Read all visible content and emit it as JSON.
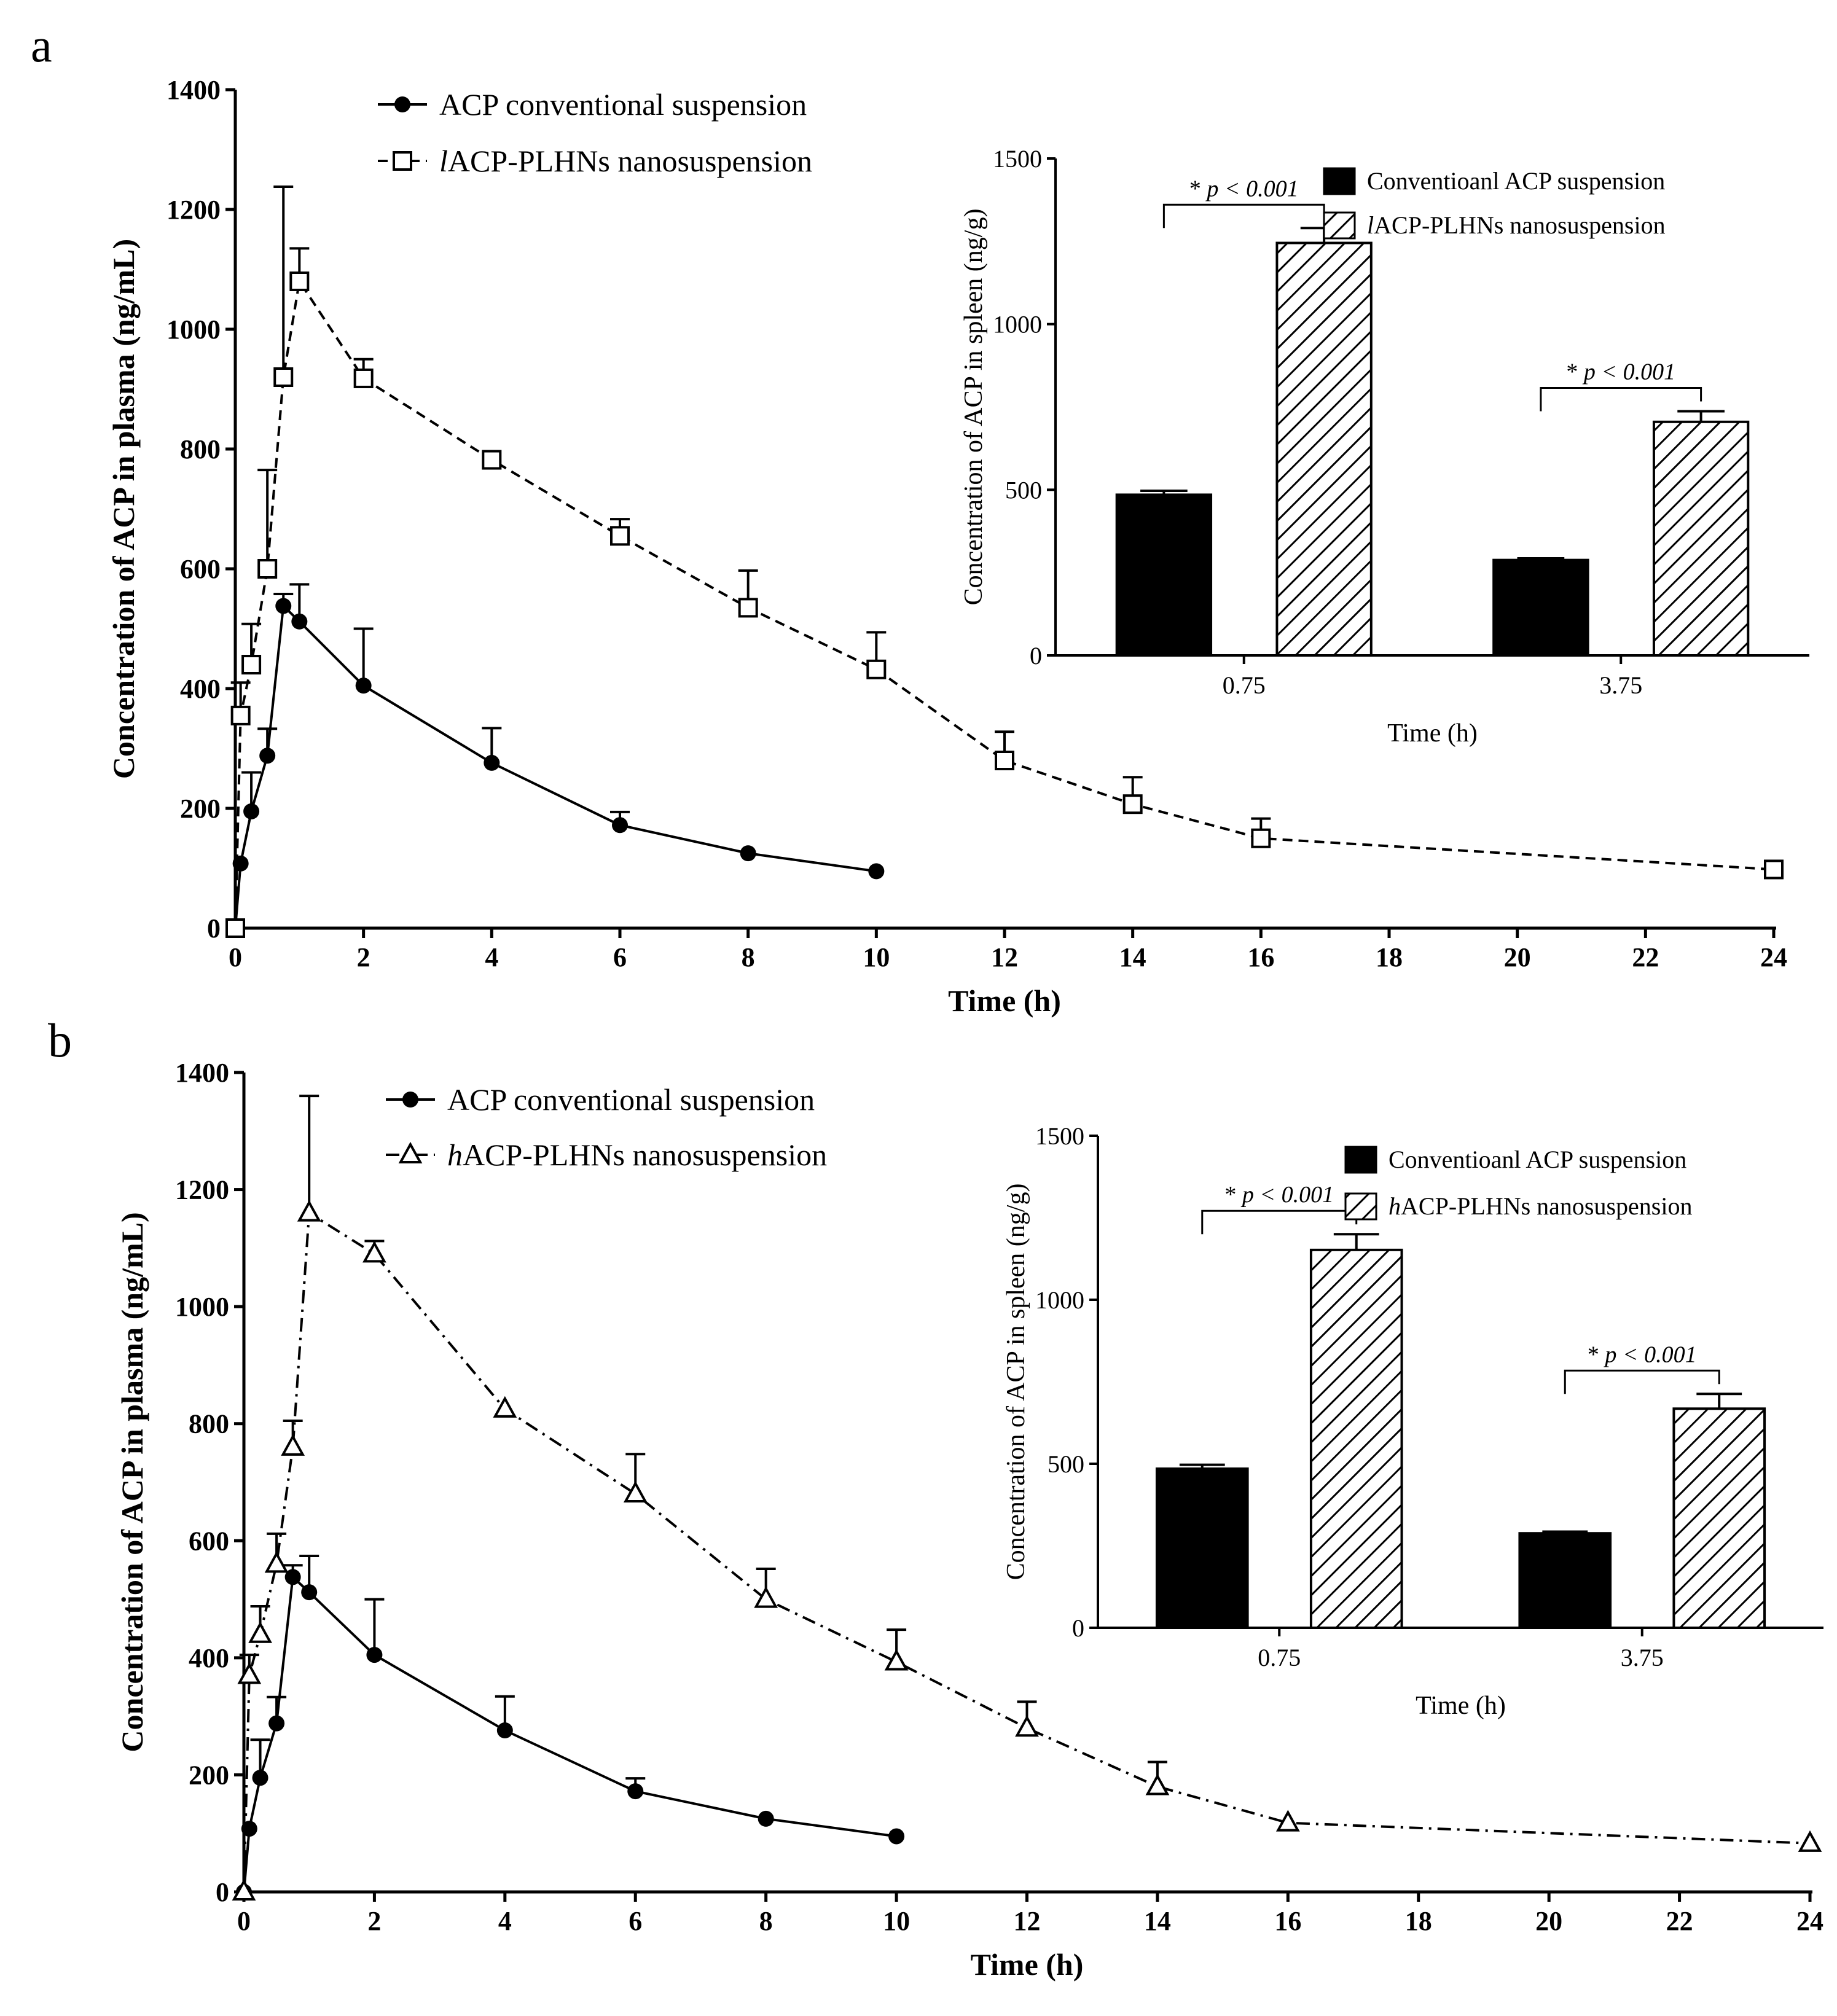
{
  "chart_data": [
    {
      "panel": "a",
      "type": "line",
      "xlabel": "Time (h)",
      "ylabel": "Concentration of ACP in plasma (ng/mL)",
      "xlim": [
        0,
        24
      ],
      "ylim": [
        0,
        1400
      ],
      "xticks": [
        0,
        2,
        4,
        6,
        8,
        10,
        12,
        14,
        16,
        18,
        20,
        22,
        24
      ],
      "yticks": [
        0,
        200,
        400,
        600,
        800,
        1000,
        1200,
        1400
      ],
      "legend_position": "top-left",
      "series": [
        {
          "name": "ACP conventional suspension",
          "marker": "filled-circle",
          "line": "solid",
          "x": [
            0,
            0.083,
            0.25,
            0.5,
            0.75,
            1,
            2,
            4,
            6,
            8,
            10
          ],
          "y": [
            0,
            108,
            195,
            288,
            538,
            512,
            405,
            276,
            172,
            125,
            95
          ],
          "err": [
            0,
            0,
            65,
            45,
            20,
            62,
            95,
            58,
            22,
            0,
            0
          ]
        },
        {
          "name": "lACP-PLHNs nanosuspension",
          "name_prefix_italic": "l",
          "name_rest": "ACP-PLHNs nanosuspension",
          "marker": "open-square",
          "line": "dashed",
          "x": [
            0,
            0.083,
            0.25,
            0.5,
            0.75,
            1,
            2,
            4,
            6,
            8,
            10,
            12,
            14,
            16,
            24
          ],
          "y": [
            0,
            355,
            440,
            600,
            920,
            1080,
            918,
            782,
            655,
            535,
            432,
            280,
            207,
            150,
            98
          ],
          "err": [
            0,
            55,
            68,
            165,
            318,
            55,
            32,
            0,
            28,
            62,
            62,
            48,
            45,
            33,
            0
          ]
        }
      ],
      "inset": {
        "type": "bar",
        "xlabel": "Time (h)",
        "ylabel": "Concentration of ACP in spleen (ng/g)",
        "ylim": [
          0,
          1500
        ],
        "yticks": [
          0,
          500,
          1000,
          1500
        ],
        "categories": [
          "0.75",
          "3.75"
        ],
        "series": [
          {
            "name": "Conventioanl ACP suspension",
            "fill": "solid-black",
            "values": [
              485,
              288
            ],
            "err": [
              12,
              5
            ]
          },
          {
            "name": "lACP-PLHNs nanosuspension",
            "name_prefix_italic": "l",
            "name_rest": "ACP-PLHNs nanosuspension",
            "fill": "diagonal-hatch",
            "values": [
              1245,
              705
            ],
            "err": [
              45,
              32
            ]
          }
        ],
        "annotations": [
          {
            "category": "0.75",
            "star": "*",
            "text": "p < 0.001"
          },
          {
            "category": "3.75",
            "star": "*",
            "text": "p < 0.001"
          }
        ]
      }
    },
    {
      "panel": "b",
      "type": "line",
      "xlabel": "Time (h)",
      "ylabel": "Concentration of ACP in plasma (ng/mL)",
      "xlim": [
        0,
        24
      ],
      "ylim": [
        0,
        1400
      ],
      "xticks": [
        0,
        2,
        4,
        6,
        8,
        10,
        12,
        14,
        16,
        18,
        20,
        22,
        24
      ],
      "yticks": [
        0,
        200,
        400,
        600,
        800,
        1000,
        1200,
        1400
      ],
      "legend_position": "top-left",
      "series": [
        {
          "name": "ACP conventional suspension",
          "marker": "filled-circle",
          "line": "solid",
          "x": [
            0,
            0.083,
            0.25,
            0.5,
            0.75,
            1,
            2,
            4,
            6,
            8,
            10
          ],
          "y": [
            0,
            108,
            195,
            288,
            538,
            512,
            405,
            276,
            172,
            125,
            95
          ],
          "err": [
            0,
            0,
            65,
            45,
            20,
            62,
            95,
            58,
            22,
            0,
            0
          ]
        },
        {
          "name": "hACP-PLHNs nanosuspension",
          "name_prefix_italic": "h",
          "name_rest": "ACP-PLHNs nanosuspension",
          "marker": "open-triangle",
          "line": "dash-dot",
          "x": [
            0,
            0.083,
            0.25,
            0.5,
            0.75,
            1,
            2,
            4,
            6,
            8,
            10,
            12,
            14,
            16,
            24
          ],
          "y": [
            0,
            370,
            440,
            560,
            760,
            1160,
            1090,
            825,
            680,
            500,
            393,
            280,
            180,
            118,
            83
          ],
          "err": [
            0,
            35,
            48,
            52,
            45,
            200,
            22,
            0,
            68,
            52,
            55,
            45,
            42,
            0,
            0
          ]
        }
      ],
      "inset": {
        "type": "bar",
        "xlabel": "Time (h)",
        "ylabel": "Concentration of ACP in spleen (ng/g)",
        "ylim": [
          0,
          1500
        ],
        "yticks": [
          0,
          500,
          1000,
          1500
        ],
        "categories": [
          "0.75",
          "3.75"
        ],
        "series": [
          {
            "name": "Conventioanl ACP suspension",
            "fill": "solid-black",
            "values": [
              485,
              288
            ],
            "err": [
              12,
              5
            ]
          },
          {
            "name": "hACP-PLHNs nanosuspension",
            "name_prefix_italic": "h",
            "name_rest": "ACP-PLHNs nanosuspension",
            "fill": "diagonal-hatch",
            "values": [
              1152,
              668
            ],
            "err": [
              48,
              45
            ]
          }
        ],
        "annotations": [
          {
            "category": "0.75",
            "star": "*",
            "text": "p < 0.001"
          },
          {
            "category": "3.75",
            "star": "*",
            "text": "p < 0.001"
          }
        ]
      }
    }
  ]
}
